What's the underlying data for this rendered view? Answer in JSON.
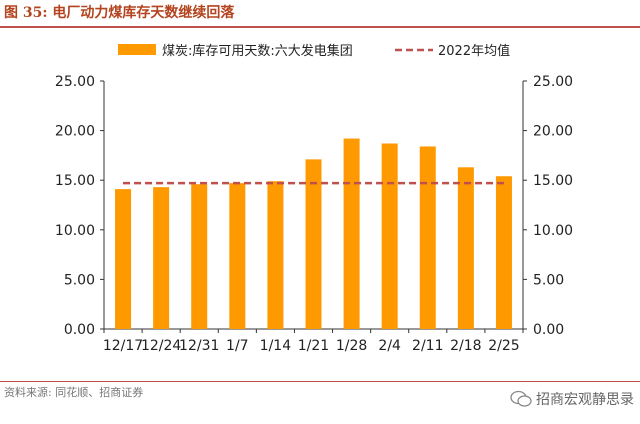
{
  "figure": {
    "title": "图 35:  电厂动力煤库存天数继续回落",
    "source": "资料来源: 同花顺、招商证券",
    "watermark": "招商宏观静思录"
  },
  "colors": {
    "bar": "#ff9900",
    "reference_line": "#c0504d",
    "title": "#b4441f"
  },
  "chart_data": {
    "type": "bar",
    "categories": [
      "12/17",
      "12/24",
      "12/31",
      "1/7",
      "1/14",
      "1/21",
      "1/28",
      "2/4",
      "2/11",
      "2/18",
      "2/25"
    ],
    "series": [
      {
        "name": "煤炭:库存可用天数:六大发电集团",
        "type": "bar",
        "values": [
          14.1,
          14.3,
          14.6,
          14.7,
          14.9,
          17.1,
          19.2,
          18.7,
          18.4,
          16.3,
          15.4
        ]
      },
      {
        "name": "2022年均值",
        "type": "line",
        "style": "dashed",
        "values": [
          14.7,
          14.7,
          14.7,
          14.7,
          14.7,
          14.7,
          14.7,
          14.7,
          14.7,
          14.7,
          14.7
        ]
      }
    ],
    "ylim": [
      0,
      25
    ],
    "y_ticks": [
      "0.00",
      "5.00",
      "10.00",
      "15.00",
      "20.00",
      "25.00"
    ],
    "y_ticks_right": [
      "0.00",
      "5.00",
      "10.00",
      "15.00",
      "20.00",
      "25.00"
    ],
    "legend_position": "top",
    "grid": false
  }
}
